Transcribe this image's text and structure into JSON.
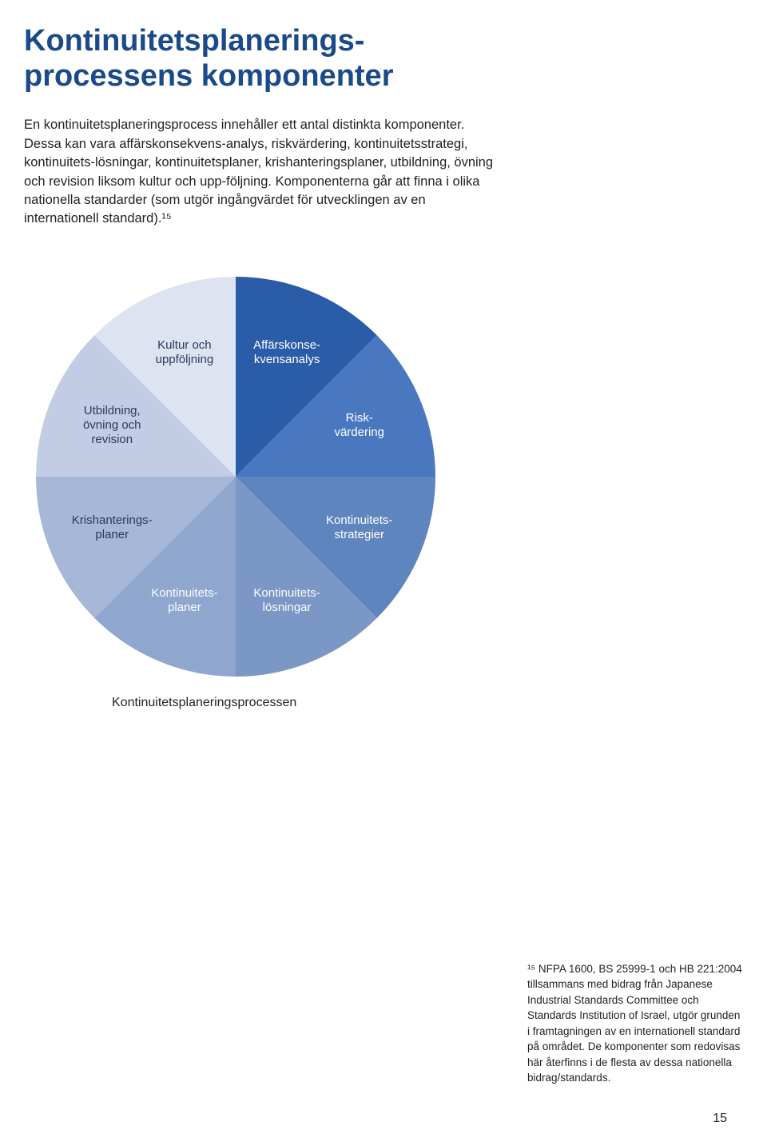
{
  "title_color": "#1a4a8a",
  "title": "Kontinuitetsplanerings-\nprocessens komponenter",
  "body": "En kontinuitetsplaneringsprocess innehåller ett antal distinkta komponenter. Dessa kan vara affärskonsekvens-analys, riskvärdering, kontinuitetsstrategi, kontinuitets-lösningar, kontinuitetsplaner, krishanteringsplaner, utbildning, övning och revision liksom kultur och upp-följning. Komponenterna går att finna i olika nationella standarder (som utgör ingångvärdet för utvecklingen av en internationell standard).¹⁵",
  "pie": {
    "type": "pie",
    "segments": [
      {
        "label": "Affärskonse-\nkvensanalys",
        "color": "#2a5ca8",
        "text": "light"
      },
      {
        "label": "Risk-\nvärdering",
        "color": "#4a78c0",
        "text": "light"
      },
      {
        "label": "Kontinuitets-\nstrategier",
        "color": "#5f85bf",
        "text": "light"
      },
      {
        "label": "Kontinuitets-\nlösningar",
        "color": "#7a97c6",
        "text": "light"
      },
      {
        "label": "Kontinuitets-\nplaner",
        "color": "#8fa6ce",
        "text": "light"
      },
      {
        "label": "Krishanterings-\nplaner",
        "color": "#a7b7d8",
        "text": "dark"
      },
      {
        "label": "Utbildning,\növning och\nrevision",
        "color": "#c2cce5",
        "text": "dark"
      },
      {
        "label": "Kultur och\nuppföljning",
        "color": "#dde3f1",
        "text": "dark"
      }
    ],
    "caption": "Kontinuitetsplaneringsprocessen"
  },
  "footnote": "¹⁵ NFPA 1600, BS 25999-1 och HB 221:2004 tillsammans med bidrag från Japanese Industrial Standards Committee och Standards Institution of Israel, utgör grunden i framtagningen av en internationell standard på området. De komponenter som redovisas här återfinns i de flesta av dessa nationella bidrag/standards.",
  "page_number": "15"
}
